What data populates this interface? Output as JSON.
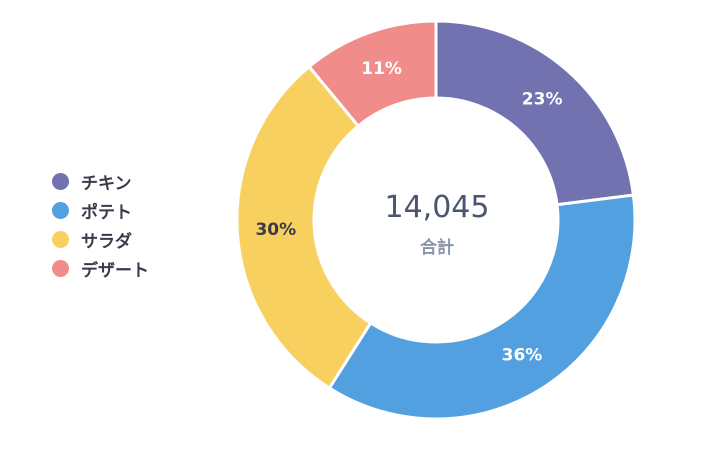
{
  "chart_data": {
    "type": "pie",
    "categories": [
      "チキン",
      "ポテト",
      "サラダ",
      "デザート"
    ],
    "values": [
      23,
      36,
      30,
      11
    ],
    "labels": [
      "23%",
      "36%",
      "30%",
      "11%"
    ],
    "colors": [
      "#7272b0",
      "#52a0e0",
      "#f8d060",
      "#f08c8a"
    ],
    "legend_position": "left",
    "center": {
      "value": "14,045",
      "label": "合計"
    }
  }
}
